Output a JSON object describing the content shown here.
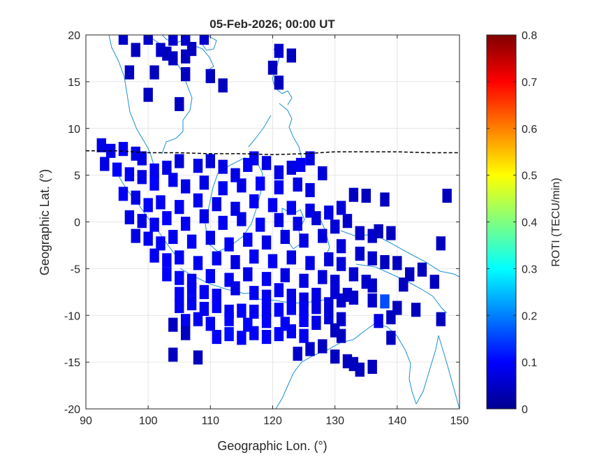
{
  "chart_data": {
    "type": "heatmap",
    "title": "05-Feb-2026; 00:00 UT",
    "xlabel": "Geographic Lon. (°)",
    "ylabel": "Geographic Lat. (°)",
    "xlim": [
      90,
      150
    ],
    "ylim": [
      -20,
      20
    ],
    "xticks": [
      "90",
      "100",
      "110",
      "120",
      "130",
      "140",
      "150"
    ],
    "yticks": [
      "20",
      "15",
      "10",
      "5",
      "0",
      "-5",
      "-10",
      "-15",
      "-20"
    ],
    "grid": true,
    "colorbar": {
      "label": "ROTI (TECU/min)",
      "range": [
        0,
        0.8
      ],
      "ticks": [
        "0",
        "0.1",
        "0.2",
        "0.3",
        "0.4",
        "0.5",
        "0.6",
        "0.7",
        "0.8"
      ],
      "colormap": "jet"
    },
    "colors": {
      "coastline": "#1a8fd0",
      "magnetic_equator": "#000000",
      "grid": "#e6e6e6"
    },
    "cell_size": [
      1.5,
      1.5
    ],
    "magnetic_equator": [
      [
        90,
        7.6
      ],
      [
        95,
        7.6
      ],
      [
        100,
        7.4
      ],
      [
        105,
        7.4
      ],
      [
        110,
        7.3
      ],
      [
        115,
        7.3
      ],
      [
        120,
        7.2
      ],
      [
        125,
        7.3
      ],
      [
        130,
        7.5
      ],
      [
        135,
        7.5
      ],
      [
        140,
        7.5
      ],
      [
        145,
        7.4
      ],
      [
        150,
        7.4
      ]
    ],
    "roti_points": [
      [
        96,
        19.7,
        0.06
      ],
      [
        100,
        19.7,
        0.06
      ],
      [
        104,
        19.6,
        0.06
      ],
      [
        106,
        19.6,
        0.06
      ],
      [
        109,
        19.7,
        0.06
      ],
      [
        98,
        18.4,
        0.05
      ],
      [
        102,
        18.4,
        0.06
      ],
      [
        103,
        18.0,
        0.05
      ],
      [
        104,
        17.5,
        0.05
      ],
      [
        106,
        17.7,
        0.05
      ],
      [
        107,
        18.5,
        0.05
      ],
      [
        121,
        18.3,
        0.06
      ],
      [
        123,
        17.8,
        0.05
      ],
      [
        97,
        16.0,
        0.05
      ],
      [
        101,
        16.0,
        0.05
      ],
      [
        106,
        15.8,
        0.05
      ],
      [
        110,
        15.6,
        0.05
      ],
      [
        112,
        14.6,
        0.05
      ],
      [
        121,
        14.9,
        0.05
      ],
      [
        120,
        16.5,
        0.05
      ],
      [
        100,
        13.6,
        0.05
      ],
      [
        105,
        12.6,
        0.05
      ],
      [
        92.5,
        8.2,
        0.08
      ],
      [
        94,
        7.6,
        0.08
      ],
      [
        96,
        7.8,
        0.09
      ],
      [
        98,
        7.3,
        0.08
      ],
      [
        99,
        6.8,
        0.08
      ],
      [
        101,
        5.5,
        0.09
      ],
      [
        103,
        5.8,
        0.08
      ],
      [
        105,
        6.5,
        0.07
      ],
      [
        108,
        6.0,
        0.08
      ],
      [
        110,
        6.5,
        0.07
      ],
      [
        112,
        5.9,
        0.08
      ],
      [
        114,
        5.0,
        0.08
      ],
      [
        116,
        6.1,
        0.09
      ],
      [
        117,
        6.8,
        0.09
      ],
      [
        119,
        6.3,
        0.08
      ],
      [
        121,
        5.3,
        0.08
      ],
      [
        123,
        5.8,
        0.08
      ],
      [
        124.5,
        6.1,
        0.09
      ],
      [
        126,
        6.8,
        0.08
      ],
      [
        128,
        5.2,
        0.07
      ],
      [
        93,
        6.2,
        0.08
      ],
      [
        95,
        5.6,
        0.1
      ],
      [
        97,
        5.1,
        0.09
      ],
      [
        99,
        4.8,
        0.08
      ],
      [
        101,
        4.1,
        0.1
      ],
      [
        104,
        4.5,
        0.09
      ],
      [
        106,
        3.8,
        0.08
      ],
      [
        109,
        4.2,
        0.08
      ],
      [
        112,
        3.6,
        0.09
      ],
      [
        115,
        3.9,
        0.08
      ],
      [
        118,
        4.1,
        0.1
      ],
      [
        121,
        3.7,
        0.09
      ],
      [
        124,
        4.0,
        0.08
      ],
      [
        126,
        3.4,
        0.08
      ],
      [
        96,
        3.0,
        0.09
      ],
      [
        98,
        2.6,
        0.08
      ],
      [
        100,
        1.8,
        0.1
      ],
      [
        102,
        2.1,
        0.09
      ],
      [
        105,
        1.6,
        0.09
      ],
      [
        108,
        2.3,
        0.09
      ],
      [
        111,
        1.9,
        0.08
      ],
      [
        114,
        1.4,
        0.08
      ],
      [
        117,
        2.2,
        0.09
      ],
      [
        120,
        1.8,
        0.09
      ],
      [
        123,
        1.5,
        0.09
      ],
      [
        126,
        1.2,
        0.08
      ],
      [
        129,
        1.0,
        0.08
      ],
      [
        131,
        1.5,
        0.07
      ],
      [
        133,
        2.9,
        0.05
      ],
      [
        135,
        2.8,
        0.05
      ],
      [
        138,
        2.4,
        0.05
      ],
      [
        148,
        2.8,
        0.05
      ],
      [
        97,
        0.5,
        0.08
      ],
      [
        99,
        0.1,
        0.08
      ],
      [
        101,
        -0.3,
        0.09
      ],
      [
        103,
        0.4,
        0.1
      ],
      [
        106,
        -0.2,
        0.09
      ],
      [
        109,
        0.6,
        0.08
      ],
      [
        112,
        -0.1,
        0.09
      ],
      [
        115,
        0.3,
        0.08
      ],
      [
        118,
        -0.3,
        0.09
      ],
      [
        121,
        0.2,
        0.08
      ],
      [
        124,
        -0.2,
        0.08
      ],
      [
        127,
        0.4,
        0.07
      ],
      [
        130,
        -0.5,
        0.07
      ],
      [
        132,
        0.1,
        0.06
      ],
      [
        98,
        -1.5,
        0.08
      ],
      [
        100,
        -1.8,
        0.09
      ],
      [
        102,
        -2.3,
        0.1
      ],
      [
        104,
        -1.6,
        0.09
      ],
      [
        107,
        -2.1,
        0.09
      ],
      [
        110,
        -1.7,
        0.08
      ],
      [
        113,
        -2.4,
        0.09
      ],
      [
        116,
        -1.9,
        0.09
      ],
      [
        119,
        -2.2,
        0.08
      ],
      [
        122,
        -1.6,
        0.08
      ],
      [
        125,
        -2.0,
        0.08
      ],
      [
        128,
        -1.5,
        0.07
      ],
      [
        131,
        -2.6,
        0.07
      ],
      [
        134,
        -1.2,
        0.06
      ],
      [
        136,
        -1.5,
        0.06
      ],
      [
        137,
        -1.0,
        0.05
      ],
      [
        139,
        -1.2,
        0.05
      ],
      [
        147,
        -2.3,
        0.05
      ],
      [
        101,
        -3.6,
        0.09
      ],
      [
        103,
        -4.1,
        0.1
      ],
      [
        105,
        -3.8,
        0.09
      ],
      [
        108,
        -4.4,
        0.09
      ],
      [
        111,
        -3.9,
        0.09
      ],
      [
        114,
        -4.3,
        0.08
      ],
      [
        117,
        -3.7,
        0.09
      ],
      [
        120,
        -4.2,
        0.09
      ],
      [
        123,
        -3.8,
        0.08
      ],
      [
        126,
        -4.4,
        0.08
      ],
      [
        129,
        -4.0,
        0.07
      ],
      [
        131,
        -4.5,
        0.07
      ],
      [
        134,
        -3.4,
        0.06
      ],
      [
        136,
        -3.9,
        0.06
      ],
      [
        138,
        -4.3,
        0.05
      ],
      [
        140,
        -4.4,
        0.05
      ],
      [
        103,
        -5.6,
        0.1
      ],
      [
        105,
        -6.0,
        0.1
      ],
      [
        107,
        -6.3,
        0.09
      ],
      [
        110,
        -5.8,
        0.09
      ],
      [
        113,
        -6.2,
        0.09
      ],
      [
        116,
        -5.6,
        0.08
      ],
      [
        119,
        -6.1,
        0.09
      ],
      [
        122,
        -5.7,
        0.08
      ],
      [
        125,
        -6.3,
        0.08
      ],
      [
        128,
        -5.9,
        0.07
      ],
      [
        130,
        -6.4,
        0.07
      ],
      [
        133,
        -5.6,
        0.06
      ],
      [
        135,
        -6.4,
        0.06
      ],
      [
        142,
        -5.6,
        0.05
      ],
      [
        144,
        -5.1,
        0.05
      ],
      [
        105,
        -7.7,
        0.09
      ],
      [
        107,
        -7.2,
        0.09
      ],
      [
        109,
        -7.5,
        0.09
      ],
      [
        111,
        -7.9,
        0.09
      ],
      [
        114,
        -7.1,
        0.08
      ],
      [
        117,
        -7.6,
        0.09
      ],
      [
        119,
        -8.0,
        0.09
      ],
      [
        121,
        -7.3,
        0.09
      ],
      [
        123,
        -7.9,
        0.08
      ],
      [
        125,
        -8.3,
        0.08
      ],
      [
        127,
        -7.8,
        0.08
      ],
      [
        130,
        -7.5,
        0.07
      ],
      [
        132,
        -7.8,
        0.06
      ],
      [
        136,
        -6.8,
        0.06
      ],
      [
        141,
        -6.7,
        0.05
      ],
      [
        146,
        -6.4,
        0.05
      ],
      [
        105,
        -9.0,
        0.09
      ],
      [
        107,
        -8.7,
        0.09
      ],
      [
        109,
        -9.3,
        0.09
      ],
      [
        111,
        -9.0,
        0.1
      ],
      [
        113,
        -9.6,
        0.09
      ],
      [
        115,
        -9.5,
        0.1
      ],
      [
        117,
        -9.6,
        0.09
      ],
      [
        119,
        -9.4,
        0.09
      ],
      [
        121,
        -9.4,
        0.1
      ],
      [
        123,
        -9.2,
        0.09
      ],
      [
        125,
        -9.3,
        0.09
      ],
      [
        127,
        -9.1,
        0.08
      ],
      [
        129,
        -8.8,
        0.07
      ],
      [
        131,
        -8.4,
        0.06
      ],
      [
        133,
        -8.1,
        0.06
      ],
      [
        136,
        -8.4,
        0.06
      ],
      [
        138,
        -8.5,
        0.16
      ],
      [
        140,
        -9.2,
        0.05
      ],
      [
        143,
        -9.4,
        0.05
      ],
      [
        147,
        -10.4,
        0.05
      ],
      [
        106,
        -10.6,
        0.09
      ],
      [
        108,
        -10.4,
        0.09
      ],
      [
        110,
        -10.9,
        0.09
      ],
      [
        113,
        -10.4,
        0.1
      ],
      [
        116,
        -11.0,
        0.1
      ],
      [
        119,
        -10.6,
        0.1
      ],
      [
        122,
        -10.9,
        0.1
      ],
      [
        125,
        -10.5,
        0.1
      ],
      [
        127,
        -10.8,
        0.08
      ],
      [
        129,
        -10.2,
        0.07
      ],
      [
        131,
        -10.4,
        0.06
      ],
      [
        137,
        -10.6,
        0.08
      ],
      [
        139,
        -10.2,
        0.05
      ],
      [
        104,
        -11.0,
        0.05
      ],
      [
        106,
        -11.9,
        0.05
      ],
      [
        111,
        -12.3,
        0.1
      ],
      [
        113,
        -12.0,
        0.11
      ],
      [
        115,
        -12.4,
        0.1
      ],
      [
        117,
        -11.9,
        0.1
      ],
      [
        119,
        -12.3,
        0.1
      ],
      [
        121,
        -12.0,
        0.1
      ],
      [
        123,
        -11.7,
        0.09
      ],
      [
        125,
        -12.2,
        0.09
      ],
      [
        130,
        -11.6,
        0.05
      ],
      [
        131,
        -12.2,
        0.05
      ],
      [
        139,
        -12.4,
        0.05
      ],
      [
        104,
        -14.2,
        0.05
      ],
      [
        108,
        -14.5,
        0.05
      ],
      [
        124,
        -14.1,
        0.06
      ],
      [
        126,
        -13.6,
        0.06
      ],
      [
        128,
        -13.3,
        0.05
      ],
      [
        130,
        -14.4,
        0.05
      ],
      [
        132,
        -14.9,
        0.05
      ],
      [
        133,
        -15.2,
        0.05
      ],
      [
        134,
        -15.8,
        0.05
      ],
      [
        136,
        -15.5,
        0.05
      ]
    ]
  }
}
